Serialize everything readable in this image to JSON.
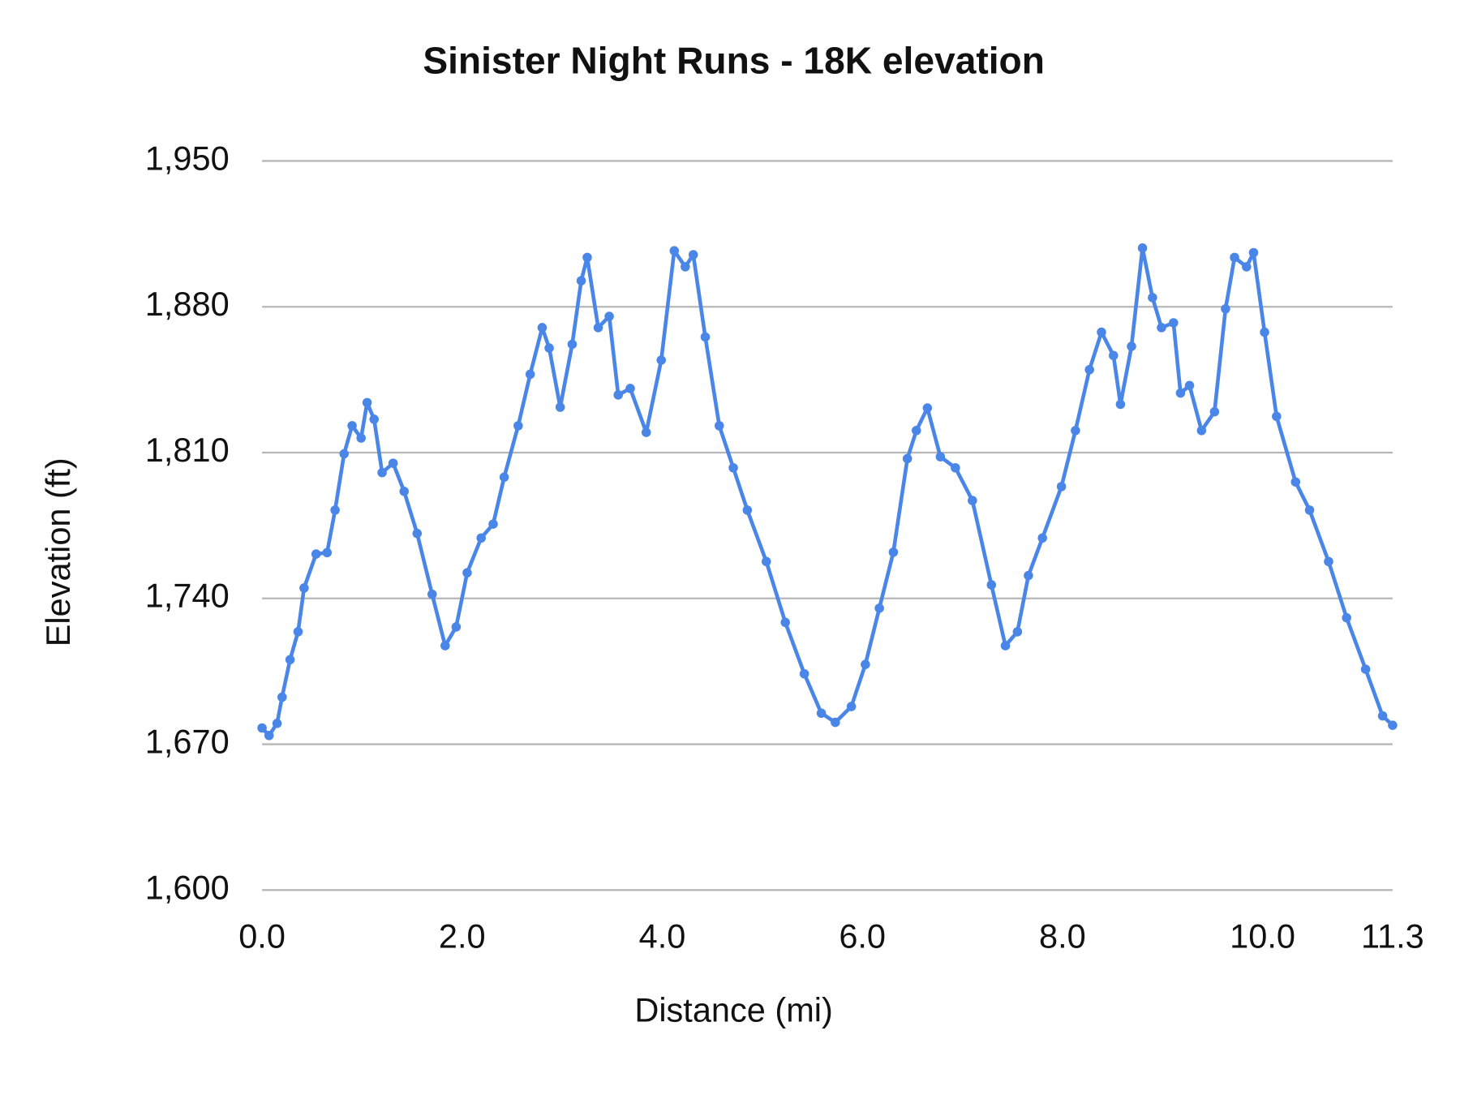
{
  "chart_data": {
    "type": "line",
    "title": "Sinister Night Runs - 18K elevation",
    "x_label": "Distance (mi)",
    "y_label": "Elevation (ft)",
    "color": "#4a86e8",
    "markers": true,
    "grid": true,
    "x": [
      0.0,
      0.07,
      0.15,
      0.2,
      0.28,
      0.36,
      0.42,
      0.54,
      0.65,
      0.73,
      0.82,
      0.9,
      0.99,
      1.05,
      1.12,
      1.2,
      1.31,
      1.42,
      1.55,
      1.7,
      1.83,
      1.94,
      2.05,
      2.19,
      2.31,
      2.42,
      2.56,
      2.68,
      2.8,
      2.87,
      2.98,
      3.1,
      3.19,
      3.25,
      3.36,
      3.47,
      3.56,
      3.68,
      3.84,
      3.99,
      4.12,
      4.23,
      4.31,
      4.43,
      4.57,
      4.71,
      4.85,
      5.04,
      5.23,
      5.42,
      5.59,
      5.73,
      5.89,
      6.03,
      6.17,
      6.31,
      6.45,
      6.54,
      6.65,
      6.78,
      6.93,
      7.1,
      7.29,
      7.43,
      7.55,
      7.66,
      7.8,
      7.99,
      8.13,
      8.27,
      8.39,
      8.51,
      8.58,
      8.69,
      8.8,
      8.9,
      8.99,
      9.11,
      9.18,
      9.27,
      9.39,
      9.52,
      9.63,
      9.72,
      9.84,
      9.91,
      10.02,
      10.14,
      10.33,
      10.47,
      10.66,
      10.84,
      11.03,
      11.2,
      11.3
    ],
    "values": [
      1677.8,
      1674.2,
      1680,
      1692.6,
      1710.6,
      1724,
      1745,
      1761.3,
      1762,
      1782.4,
      1809.4,
      1822.9,
      1817,
      1834,
      1826,
      1800.4,
      1804.9,
      1791.4,
      1771.2,
      1742,
      1717.3,
      1726.3,
      1752.3,
      1769,
      1775.7,
      1798.2,
      1822.9,
      1847.6,
      1870,
      1860.2,
      1831.8,
      1862,
      1892.5,
      1903.7,
      1870,
      1875.4,
      1837.7,
      1840.8,
      1819.7,
      1854.4,
      1906.9,
      1899.2,
      1905,
      1865.5,
      1822.9,
      1802.7,
      1782.4,
      1757.7,
      1728.5,
      1703.8,
      1684.9,
      1680.5,
      1688.1,
      1708.3,
      1735.3,
      1762.2,
      1807.1,
      1820.6,
      1831.4,
      1808,
      1802.7,
      1787,
      1746.5,
      1717.3,
      1724,
      1751,
      1769,
      1793.7,
      1820.6,
      1849.8,
      1867.8,
      1856.6,
      1833.2,
      1861,
      1908.2,
      1884.4,
      1870,
      1872.3,
      1838.6,
      1842.2,
      1820.6,
      1829.6,
      1879,
      1903.7,
      1899.2,
      1906,
      1867.8,
      1827.4,
      1795.9,
      1782.4,
      1757.7,
      1730.7,
      1706,
      1683.6,
      1679.1
    ],
    "xlim": [
      0,
      11.3
    ],
    "xticks": [
      {
        "value": 0,
        "label": "0.0"
      },
      {
        "value": 2,
        "label": "2.0"
      },
      {
        "value": 4,
        "label": "4.0"
      },
      {
        "value": 6,
        "label": "6.0"
      },
      {
        "value": 8,
        "label": "8.0"
      },
      {
        "value": 10,
        "label": "10.0"
      },
      11.3
    ],
    "ylim": [
      1600,
      1950
    ],
    "yticks": [
      {
        "value": 1600,
        "label": "1,600"
      },
      {
        "value": 1670,
        "label": "1,670"
      },
      {
        "value": 1740,
        "label": "1,740"
      },
      {
        "value": 1810,
        "label": "1,810"
      },
      {
        "value": 1880,
        "label": "1,880"
      },
      {
        "value": 1950,
        "label": "1,950"
      }
    ]
  }
}
